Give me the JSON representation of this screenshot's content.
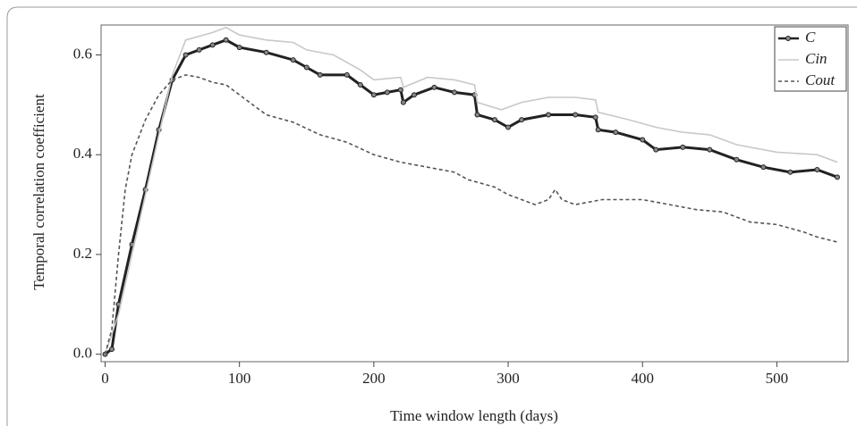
{
  "chart_data": {
    "type": "line",
    "x_label": "Time window length (days)",
    "y_label": "Temporal correlation coefficient",
    "xlim": [
      -3,
      553
    ],
    "ylim": [
      -0.015,
      0.66
    ],
    "xticks": [
      0,
      100,
      200,
      300,
      400,
      500
    ],
    "yticks": [
      {
        "value": 0,
        "label": "0.0"
      },
      0.2,
      0.4,
      0.6
    ],
    "legend": "top-right",
    "series": [
      {
        "name": "C",
        "color": "#222222",
        "style": "solid-markers",
        "x": [
          0,
          5,
          10,
          20,
          30,
          40,
          50,
          60,
          70,
          80,
          90,
          100,
          120,
          140,
          150,
          160,
          180,
          190,
          200,
          210,
          220,
          222,
          230,
          245,
          260,
          275,
          277,
          290,
          300,
          310,
          330,
          350,
          365,
          367,
          380,
          400,
          410,
          430,
          450,
          470,
          490,
          510,
          530,
          545
        ],
        "values": [
          0,
          0.01,
          0.1,
          0.22,
          0.33,
          0.45,
          0.55,
          0.6,
          0.61,
          0.62,
          0.63,
          0.615,
          0.605,
          0.59,
          0.575,
          0.56,
          0.56,
          0.54,
          0.52,
          0.525,
          0.53,
          0.505,
          0.52,
          0.535,
          0.525,
          0.52,
          0.48,
          0.47,
          0.455,
          0.47,
          0.48,
          0.48,
          0.475,
          0.45,
          0.445,
          0.43,
          0.41,
          0.415,
          0.41,
          0.39,
          0.375,
          0.365,
          0.37,
          0.355
        ]
      },
      {
        "name": "Cin",
        "color": "#c8c8c8",
        "style": "solid",
        "x": [
          0,
          10,
          20,
          30,
          40,
          50,
          60,
          80,
          90,
          100,
          120,
          140,
          150,
          170,
          190,
          200,
          220,
          222,
          240,
          260,
          275,
          277,
          295,
          310,
          330,
          350,
          365,
          367,
          390,
          410,
          430,
          450,
          470,
          500,
          530,
          545
        ],
        "values": [
          0,
          0.08,
          0.2,
          0.32,
          0.44,
          0.56,
          0.63,
          0.645,
          0.655,
          0.64,
          0.63,
          0.625,
          0.61,
          0.6,
          0.57,
          0.55,
          0.555,
          0.535,
          0.555,
          0.55,
          0.54,
          0.505,
          0.49,
          0.505,
          0.515,
          0.515,
          0.51,
          0.485,
          0.47,
          0.455,
          0.445,
          0.44,
          0.42,
          0.405,
          0.4,
          0.385
        ]
      },
      {
        "name": "Cout",
        "color": "#555555",
        "style": "dashed",
        "x": [
          0,
          5,
          10,
          15,
          20,
          30,
          40,
          50,
          60,
          70,
          80,
          90,
          100,
          110,
          120,
          140,
          160,
          180,
          200,
          220,
          240,
          260,
          270,
          290,
          300,
          320,
          330,
          335,
          340,
          350,
          370,
          400,
          420,
          440,
          460,
          480,
          500,
          520,
          530,
          545
        ],
        "values": [
          0,
          0.05,
          0.2,
          0.33,
          0.4,
          0.47,
          0.52,
          0.55,
          0.56,
          0.555,
          0.545,
          0.54,
          0.52,
          0.5,
          0.48,
          0.465,
          0.44,
          0.425,
          0.4,
          0.385,
          0.375,
          0.365,
          0.35,
          0.335,
          0.32,
          0.3,
          0.31,
          0.33,
          0.31,
          0.3,
          0.31,
          0.31,
          0.3,
          0.29,
          0.285,
          0.265,
          0.26,
          0.245,
          0.235,
          0.225
        ]
      }
    ]
  }
}
